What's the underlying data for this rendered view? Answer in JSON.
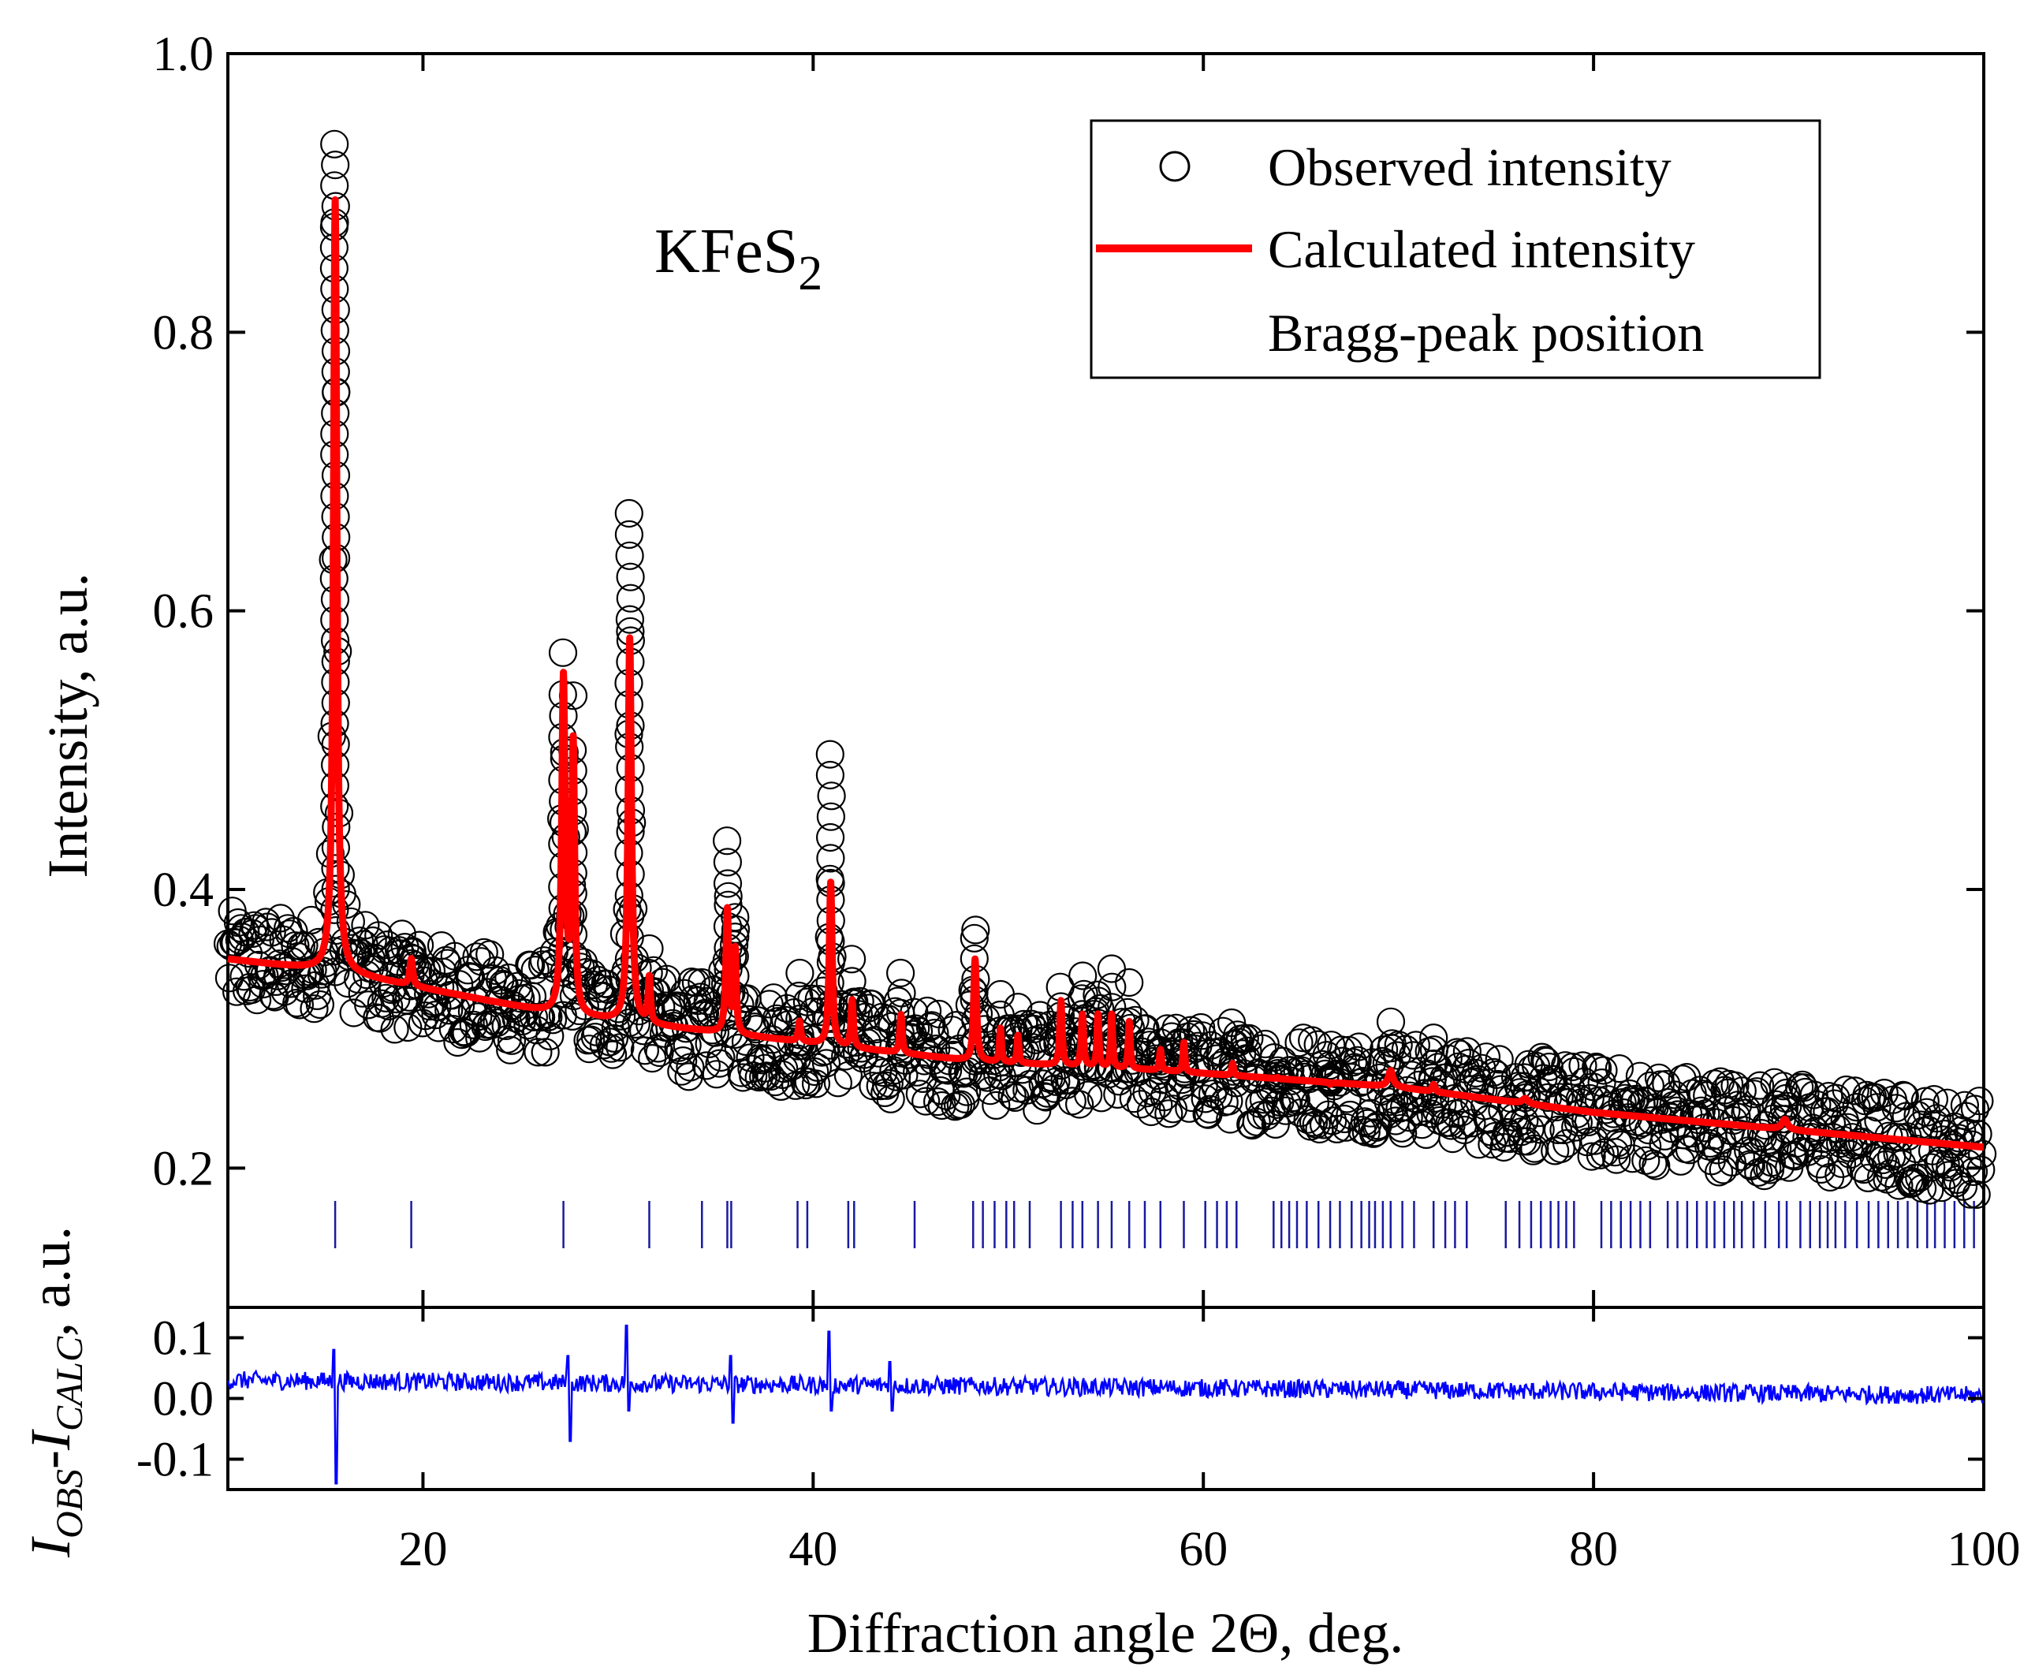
{
  "chart_data": [
    {
      "id": "main",
      "type": "scatter+line",
      "title": "",
      "annotation": {
        "main": "KFeS",
        "sub": "2"
      },
      "ylabel": "Intensity, a.u.",
      "xlim": [
        10,
        100
      ],
      "ylim": [
        0.1,
        1.0
      ],
      "yticks": [
        0.2,
        0.4,
        0.6,
        0.8,
        1.0
      ],
      "ytick_labels": [
        "0.2",
        "0.4",
        "0.6",
        "0.8",
        "1.0"
      ],
      "legend": {
        "position": "top-right",
        "entries": [
          {
            "label": "Observed intensity",
            "marker": "open-circle",
            "color": "#000000"
          },
          {
            "label": "Calculated intensity",
            "marker": "line",
            "color": "#ff0000"
          },
          {
            "label": "Bragg-peak position",
            "marker": "tick",
            "color": "#1a1aa0"
          }
        ]
      },
      "background": [
        [
          10,
          0.35
        ],
        [
          16,
          0.34
        ],
        [
          27,
          0.31
        ],
        [
          48,
          0.277
        ],
        [
          58,
          0.27
        ],
        [
          70,
          0.258
        ],
        [
          80,
          0.24
        ],
        [
          100,
          0.215
        ]
      ],
      "peaks": [
        {
          "x": 15.5,
          "y": 0.935,
          "calc": 0.895,
          "w": 0.18
        },
        {
          "x": 19.4,
          "y": 0.355,
          "calc": 0.35,
          "w": 0.15
        },
        {
          "x": 27.2,
          "y": 0.54,
          "calc": 0.55,
          "w": 0.18
        },
        {
          "x": 27.7,
          "y": 0.5,
          "calc": 0.5,
          "w": 0.15
        },
        {
          "x": 30.6,
          "y": 0.67,
          "calc": 0.58,
          "w": 0.18
        },
        {
          "x": 31.6,
          "y": 0.34,
          "calc": 0.335,
          "w": 0.12
        },
        {
          "x": 35.6,
          "y": 0.435,
          "calc": 0.385,
          "w": 0.15
        },
        {
          "x": 36.0,
          "y": 0.38,
          "calc": 0.355,
          "w": 0.12
        },
        {
          "x": 39.3,
          "y": 0.34,
          "calc": 0.305,
          "w": 0.12
        },
        {
          "x": 40.9,
          "y": 0.497,
          "calc": 0.405,
          "w": 0.15
        },
        {
          "x": 42.0,
          "y": 0.35,
          "calc": 0.32,
          "w": 0.12
        },
        {
          "x": 44.5,
          "y": 0.34,
          "calc": 0.31,
          "w": 0.12
        },
        {
          "x": 48.3,
          "y": 0.365,
          "calc": 0.35,
          "w": 0.15
        },
        {
          "x": 49.6,
          "y": 0.31,
          "calc": 0.3,
          "w": 0.1
        },
        {
          "x": 50.5,
          "y": 0.3,
          "calc": 0.295,
          "w": 0.1
        },
        {
          "x": 52.7,
          "y": 0.33,
          "calc": 0.32,
          "w": 0.12
        },
        {
          "x": 53.8,
          "y": 0.338,
          "calc": 0.31,
          "w": 0.12
        },
        {
          "x": 54.6,
          "y": 0.32,
          "calc": 0.31,
          "w": 0.1
        },
        {
          "x": 55.3,
          "y": 0.33,
          "calc": 0.31,
          "w": 0.1
        },
        {
          "x": 56.2,
          "y": 0.305,
          "calc": 0.305,
          "w": 0.1
        },
        {
          "x": 57.8,
          "y": 0.29,
          "calc": 0.285,
          "w": 0.1
        },
        {
          "x": 59.0,
          "y": 0.29,
          "calc": 0.29,
          "w": 0.1
        },
        {
          "x": 61.5,
          "y": 0.275,
          "calc": 0.275,
          "w": 0.1
        },
        {
          "x": 63.8,
          "y": 0.27,
          "calc": 0.265,
          "w": 0.1
        },
        {
          "x": 66.5,
          "y": 0.265,
          "calc": 0.26,
          "w": 0.1
        },
        {
          "x": 69.6,
          "y": 0.305,
          "calc": 0.27,
          "w": 0.25
        },
        {
          "x": 71.8,
          "y": 0.285,
          "calc": 0.26,
          "w": 0.15
        },
        {
          "x": 76.5,
          "y": 0.265,
          "calc": 0.25,
          "w": 0.3
        },
        {
          "x": 89.8,
          "y": 0.25,
          "calc": 0.235,
          "w": 0.3
        }
      ],
      "bragg_positions": [
        15.5,
        19.4,
        27.2,
        31.6,
        34.3,
        35.6,
        35.8,
        39.2,
        39.7,
        41.8,
        42.1,
        45.2,
        48.2,
        48.7,
        49.3,
        49.9,
        50.3,
        51.1,
        52.7,
        53.3,
        53.8,
        54.6,
        55.3,
        56.2,
        57.0,
        57.8,
        59.0,
        60.1,
        60.7,
        61.2,
        61.7,
        63.6,
        64.0,
        64.4,
        64.8,
        65.3,
        65.9,
        66.5,
        67.0,
        67.6,
        68.1,
        68.5,
        68.8,
        69.2,
        69.6,
        70.2,
        70.8,
        71.8,
        72.4,
        72.9,
        73.5,
        75.5,
        76.2,
        76.8,
        77.3,
        77.8,
        78.2,
        78.6,
        79.0,
        80.4,
        80.9,
        81.4,
        81.9,
        82.4,
        82.9,
        83.8,
        84.3,
        84.8,
        85.3,
        85.8,
        86.2,
        86.7,
        87.2,
        87.6,
        88.2,
        88.8,
        89.5,
        89.9,
        90.6,
        91.1,
        91.6,
        92.0,
        92.4,
        92.9,
        93.5,
        94.1,
        94.6,
        95.1,
        95.6,
        96.1,
        96.6,
        97.1,
        97.5,
        98.0,
        98.5,
        99.0,
        99.5
      ]
    },
    {
      "id": "difference",
      "type": "line",
      "ylabel": {
        "italic_I": "I",
        "sub_obs": "OBS",
        "dash": "-",
        "sub_calc": "CALC",
        "rest": ", a.u."
      },
      "xlabel": "Diffraction angle 2Θ, deg.",
      "xlim": [
        10,
        100
      ],
      "xticks": [
        20,
        40,
        60,
        80,
        100
      ],
      "xtick_labels": [
        "20",
        "40",
        "60",
        "80",
        "100"
      ],
      "ylim": [
        -0.15,
        0.15
      ],
      "yticks": [
        -0.1,
        0.0,
        0.1
      ],
      "ytick_labels": [
        "-0.1",
        "0.0",
        "0.1"
      ],
      "color": "#0000ff",
      "baseline": [
        [
          10,
          0.03
        ],
        [
          50,
          0.02
        ],
        [
          100,
          0.005
        ]
      ],
      "spikes": [
        {
          "x": 15.5,
          "up": 0.08,
          "down": -0.14
        },
        {
          "x": 27.5,
          "up": 0.07,
          "down": -0.07
        },
        {
          "x": 30.5,
          "up": 0.12,
          "down": -0.02
        },
        {
          "x": 35.8,
          "up": 0.07,
          "down": -0.04
        },
        {
          "x": 40.9,
          "up": 0.11,
          "down": -0.02
        },
        {
          "x": 44.0,
          "up": 0.06,
          "down": -0.02
        }
      ]
    }
  ]
}
